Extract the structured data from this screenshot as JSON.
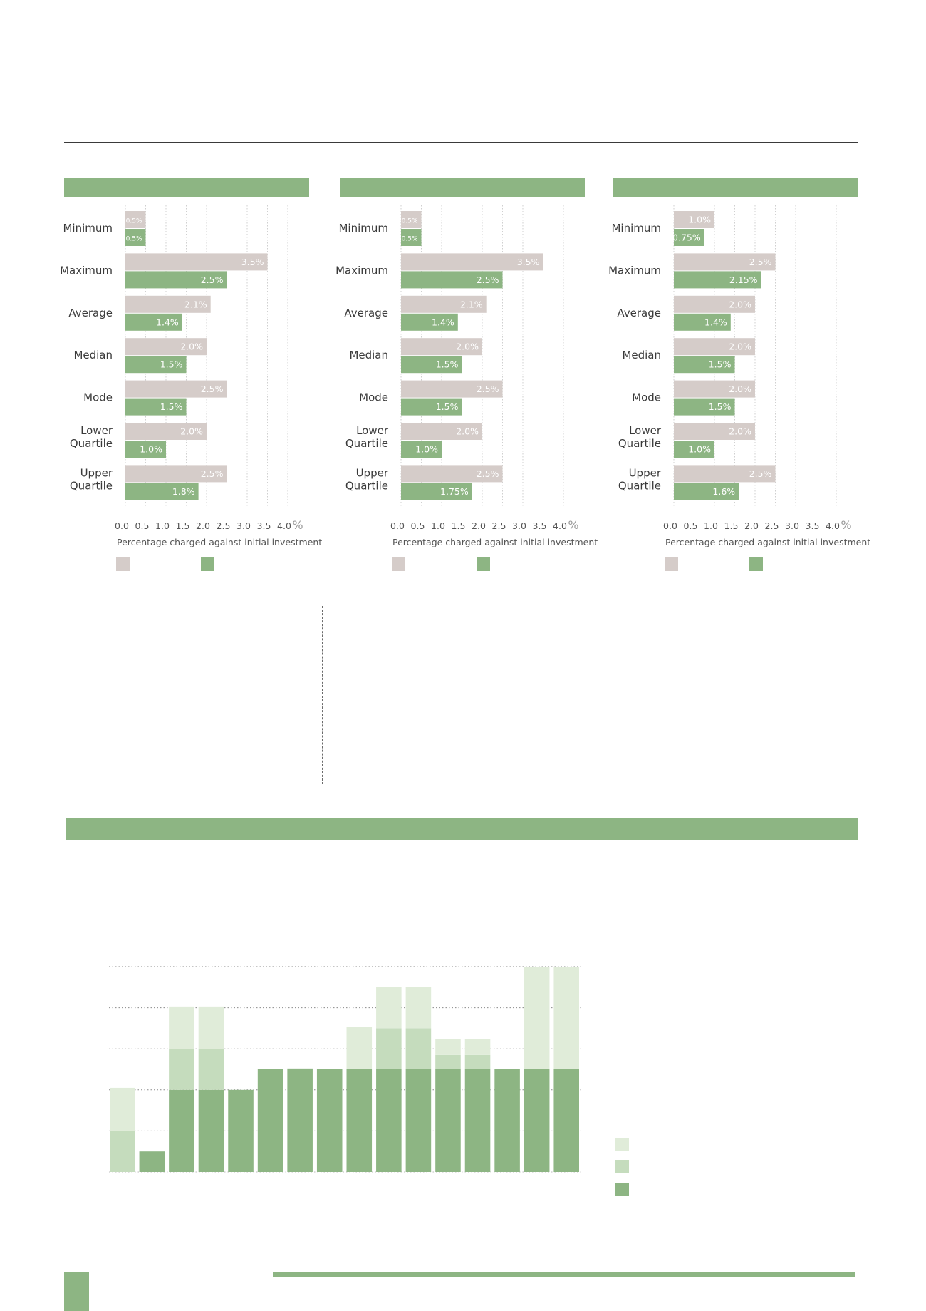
{
  "colors": {
    "accent_green": "#8db583",
    "gray_bar": "#d5ccc9",
    "light_green": "#e0ecd9",
    "mid_green": "#c5dcbd",
    "axis_text": "#555555"
  },
  "panels_common": {
    "row_labels": [
      [
        "Minimum"
      ],
      [
        "Maximum"
      ],
      [
        "Average"
      ],
      [
        "Median"
      ],
      [
        "Mode"
      ],
      [
        "Lower",
        "Quartile"
      ],
      [
        "Upper",
        "Quartile"
      ]
    ],
    "ticks": [
      "0.0",
      "0.5",
      "1.0",
      "1.5",
      "2.0",
      "2.5",
      "3.0",
      "3.5",
      "4.0"
    ],
    "unit": "%",
    "xlabel": "Percentage charged against initial investment"
  },
  "chart_data": [
    {
      "type": "bar",
      "orientation": "horizontal",
      "categories": [
        "Minimum",
        "Maximum",
        "Average",
        "Median",
        "Mode",
        "Lower Quartile",
        "Upper Quartile"
      ],
      "series": [
        {
          "values": [
            0.5,
            3.5,
            2.1,
            2.0,
            2.5,
            2.0,
            2.5
          ],
          "labels": [
            "0.5%",
            "3.5%",
            "2.1%",
            "2.0%",
            "2.5%",
            "2.0%",
            "2.5%"
          ],
          "color": "#d5ccc9"
        },
        {
          "values": [
            0.5,
            2.5,
            1.4,
            1.5,
            1.5,
            1.0,
            1.8
          ],
          "labels": [
            "0.5%",
            "2.5%",
            "1.4%",
            "1.5%",
            "1.5%",
            "1.0%",
            "1.8%"
          ],
          "color": "#8db583"
        }
      ],
      "xlabel": "Percentage charged against initial investment",
      "xlim": [
        0,
        4.0
      ]
    },
    {
      "type": "bar",
      "orientation": "horizontal",
      "categories": [
        "Minimum",
        "Maximum",
        "Average",
        "Median",
        "Mode",
        "Lower Quartile",
        "Upper Quartile"
      ],
      "series": [
        {
          "values": [
            0.5,
            3.5,
            2.1,
            2.0,
            2.5,
            2.0,
            2.5
          ],
          "labels": [
            "0.5%",
            "3.5%",
            "2.1%",
            "2.0%",
            "2.5%",
            "2.0%",
            "2.5%"
          ],
          "color": "#d5ccc9"
        },
        {
          "values": [
            0.5,
            2.5,
            1.4,
            1.5,
            1.5,
            1.0,
            1.75
          ],
          "labels": [
            "0.5%",
            "2.5%",
            "1.4%",
            "1.5%",
            "1.5%",
            "1.0%",
            "1.75%"
          ],
          "color": "#8db583"
        }
      ],
      "xlabel": "Percentage charged against initial investment",
      "xlim": [
        0,
        4.0
      ]
    },
    {
      "type": "bar",
      "orientation": "horizontal",
      "categories": [
        "Minimum",
        "Maximum",
        "Average",
        "Median",
        "Mode",
        "Lower Quartile",
        "Upper Quartile"
      ],
      "series": [
        {
          "values": [
            1.0,
            2.5,
            2.0,
            2.0,
            2.0,
            2.0,
            2.5
          ],
          "labels": [
            "1.0%",
            "2.5%",
            "2.0%",
            "2.0%",
            "2.0%",
            "2.0%",
            "2.5%"
          ],
          "color": "#d5ccc9"
        },
        {
          "values": [
            0.75,
            2.15,
            1.4,
            1.5,
            1.5,
            1.0,
            1.6
          ],
          "labels": [
            "0.75%",
            "2.15%",
            "1.4%",
            "1.5%",
            "1.5%",
            "1.0%",
            "1.6%"
          ],
          "color": "#8db583"
        }
      ],
      "xlabel": "Percentage charged against initial investment",
      "xlim": [
        0,
        4.0
      ]
    },
    {
      "type": "bar",
      "stacked": true,
      "categories": [
        "",
        "",
        "",
        "",
        "",
        "",
        "",
        "",
        "",
        "",
        "",
        "",
        "",
        "",
        "",
        ""
      ],
      "series": [
        {
          "values": [
            0,
            0.5,
            2.0,
            2.0,
            2.0,
            2.5,
            2.52,
            2.5,
            2.5,
            2.5,
            2.5,
            2.5,
            2.5,
            2.5,
            2.5,
            2.5
          ],
          "color": "#8db583"
        },
        {
          "values": [
            1.0,
            0,
            1.0,
            1.0,
            0,
            0,
            0,
            0,
            0,
            1.0,
            1.0,
            0.35,
            0.35,
            0,
            0,
            0
          ],
          "color": "#c5dcbd"
        },
        {
          "values": [
            1.05,
            0,
            1.03,
            1.03,
            0,
            0,
            0,
            0,
            1.03,
            1.0,
            1.0,
            0.38,
            0.38,
            0,
            2.5,
            2.5
          ],
          "color": "#e0ecd9"
        }
      ],
      "ylim": [
        0,
        5.0
      ],
      "grid": true
    }
  ]
}
